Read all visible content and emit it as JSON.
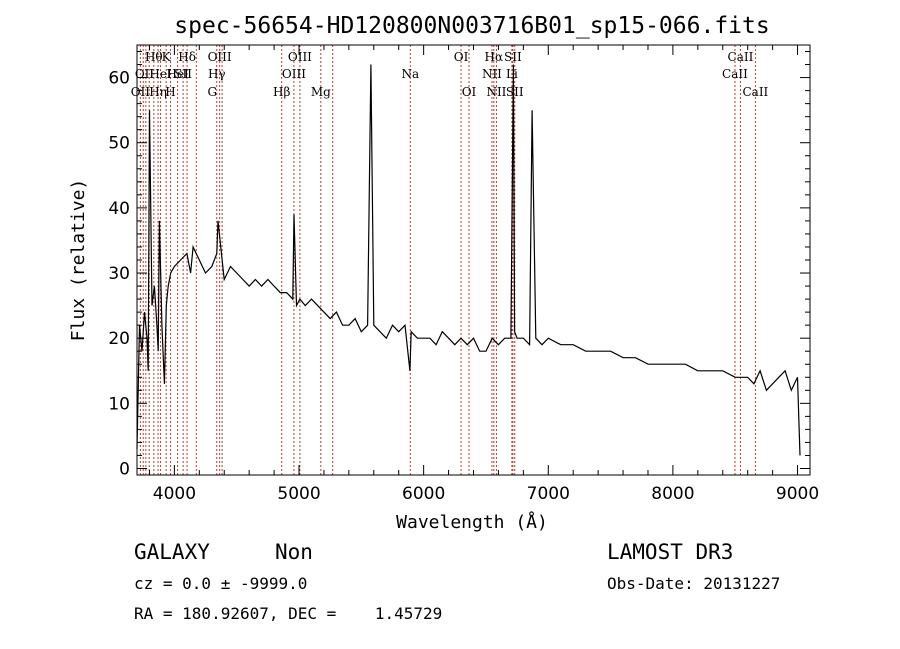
{
  "chart_data": {
    "type": "line",
    "title": "spec-56654-HD120800N003716B01_sp15-066.fits",
    "xlabel": "Wavelength (Å)",
    "ylabel": "Flux (relative)",
    "xlim": [
      3700,
      9100
    ],
    "ylim": [
      -1,
      65
    ],
    "xticks": [
      4000,
      5000,
      6000,
      7000,
      8000,
      9000
    ],
    "yticks": [
      0,
      10,
      20,
      30,
      40,
      50,
      60
    ],
    "grid": false,
    "series": [
      {
        "x": [
          3700,
          3720,
          3740,
          3760,
          3780,
          3790,
          3800,
          3820,
          3840,
          3860,
          3870,
          3880,
          3900,
          3920,
          3935,
          3950,
          3970,
          4000,
          4050,
          4100,
          4130,
          4150,
          4200,
          4250,
          4300,
          4340,
          4350,
          4400,
          4450,
          4500,
          4550,
          4600,
          4650,
          4700,
          4750,
          4800,
          4850,
          4900,
          4950,
          4960,
          4980,
          5007,
          5050,
          5100,
          5150,
          5200,
          5250,
          5300,
          5350,
          5400,
          5450,
          5500,
          5550,
          5577,
          5600,
          5650,
          5700,
          5750,
          5800,
          5850,
          5890,
          5900,
          5950,
          6000,
          6050,
          6100,
          6150,
          6200,
          6250,
          6300,
          6350,
          6400,
          6450,
          6500,
          6550,
          6600,
          6650,
          6700,
          6720,
          6730,
          6750,
          6800,
          6850,
          6870,
          6900,
          6950,
          7000,
          7100,
          7200,
          7300,
          7400,
          7500,
          7600,
          7700,
          7800,
          7900,
          8000,
          8100,
          8200,
          8300,
          8400,
          8500,
          8600,
          8650,
          8700,
          8750,
          8800,
          8850,
          8900,
          8950,
          9000,
          9020
        ],
        "y": [
          3,
          22,
          18,
          24,
          20,
          15,
          55,
          25,
          28,
          22,
          18,
          38,
          22,
          13,
          25,
          28,
          30,
          31,
          32,
          33,
          30,
          34,
          32,
          30,
          31,
          33,
          38,
          29,
          31,
          30,
          29,
          28,
          29,
          28,
          29,
          28,
          27,
          27,
          26,
          39,
          25,
          26,
          25,
          26,
          25,
          24,
          23,
          24,
          22,
          22,
          23,
          21,
          22,
          62,
          22,
          21,
          20,
          22,
          21,
          22,
          15,
          21,
          20,
          20,
          20,
          19,
          21,
          20,
          19,
          20,
          19,
          20,
          18,
          18,
          20,
          19,
          20,
          20,
          62,
          21,
          20,
          20,
          19,
          55,
          20,
          19,
          20,
          19,
          19,
          18,
          18,
          18,
          17,
          17,
          16,
          16,
          16,
          16,
          15,
          15,
          15,
          14,
          14,
          13,
          15,
          12,
          13,
          14,
          15,
          12,
          14,
          2
        ]
      }
    ],
    "lines": {
      "positions": [
        3727,
        3750,
        3771,
        3798,
        3835,
        3869,
        3889,
        3934,
        3969,
        4026,
        4070,
        4102,
        4176,
        4340,
        4363,
        4383,
        4861,
        4959,
        5007,
        5175,
        5270,
        5893,
        6300,
        6364,
        6548,
        6563,
        6584,
        6708,
        6716,
        6731,
        8498,
        8542,
        8662
      ],
      "labels": [
        {
          "text": "OII",
          "w": 3727,
          "row": 3
        },
        {
          "text": "OII",
          "w": 3760,
          "row": 2
        },
        {
          "text": "Hθ",
          "w": 3835,
          "row": 1
        },
        {
          "text": "Hη",
          "w": 3869,
          "row": 3
        },
        {
          "text": "HeI",
          "w": 3889,
          "row": 2
        },
        {
          "text": "K",
          "w": 3934,
          "row": 1
        },
        {
          "text": "H",
          "w": 3969,
          "row": 3
        },
        {
          "text": "HeI",
          "w": 4026,
          "row": 2
        },
        {
          "text": "Hδ",
          "w": 4102,
          "row": 1
        },
        {
          "text": "SII",
          "w": 4070,
          "row": 2
        },
        {
          "text": "OIII",
          "w": 4363,
          "row": 1
        },
        {
          "text": "Hγ",
          "w": 4340,
          "row": 2
        },
        {
          "text": "G",
          "w": 4304,
          "row": 3
        },
        {
          "text": "Hβ",
          "w": 4861,
          "row": 3
        },
        {
          "text": "OIII",
          "w": 5007,
          "row": 1
        },
        {
          "text": "OIII",
          "w": 4959,
          "row": 2
        },
        {
          "text": "Mg",
          "w": 5175,
          "row": 3
        },
        {
          "text": "Na",
          "w": 5893,
          "row": 2
        },
        {
          "text": "OI",
          "w": 6300,
          "row": 1
        },
        {
          "text": "OI",
          "w": 6364,
          "row": 3
        },
        {
          "text": "Hα",
          "w": 6563,
          "row": 1
        },
        {
          "text": "NII",
          "w": 6548,
          "row": 2
        },
        {
          "text": "NII",
          "w": 6584,
          "row": 3
        },
        {
          "text": "SII",
          "w": 6716,
          "row": 1
        },
        {
          "text": "Li",
          "w": 6708,
          "row": 2
        },
        {
          "text": "SII",
          "w": 6731,
          "row": 3
        },
        {
          "text": "CaII",
          "w": 8542,
          "row": 1
        },
        {
          "text": "CaII",
          "w": 8498,
          "row": 2
        },
        {
          "text": "CaII",
          "w": 8662,
          "row": 3
        }
      ]
    }
  },
  "info": {
    "class_label": "GALAXY",
    "subclass": "Non",
    "cz_line": "cz = 0.0 ± -9999.0",
    "radec_line": "RA = 180.92607, DEC =    1.45729",
    "survey": "LAMOST DR3",
    "obs_date_line": "Obs-Date: 20131227"
  }
}
